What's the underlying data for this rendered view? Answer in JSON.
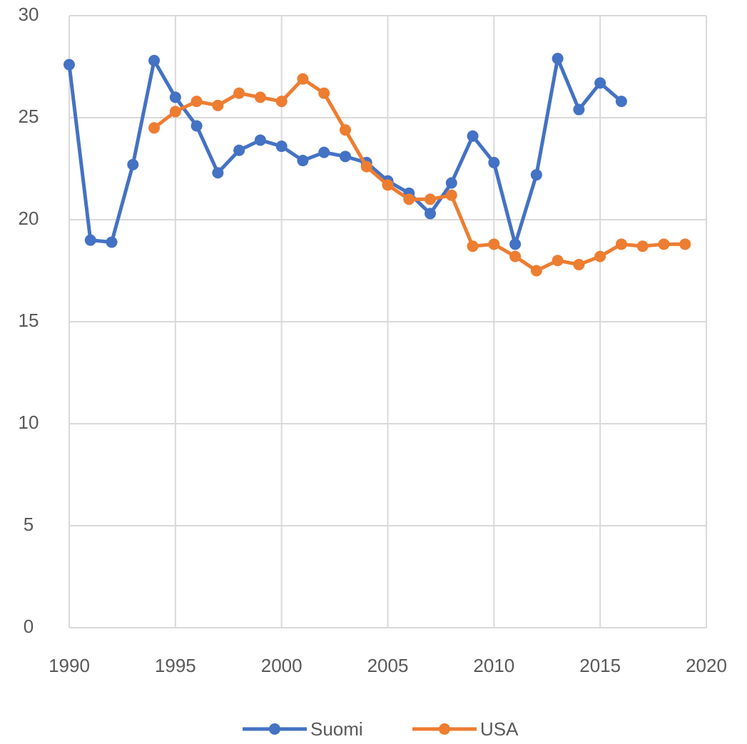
{
  "chart_data": {
    "type": "line",
    "x": [
      1990,
      1991,
      1992,
      1993,
      1994,
      1995,
      1996,
      1997,
      1998,
      1999,
      2000,
      2001,
      2002,
      2003,
      2004,
      2005,
      2006,
      2007,
      2008,
      2009,
      2010,
      2011,
      2012,
      2013,
      2014,
      2015,
      2016,
      2017,
      2018,
      2019
    ],
    "series": [
      {
        "name": "Suomi",
        "color": "#4472c4",
        "values": [
          27.6,
          19.0,
          18.9,
          22.7,
          27.8,
          26.0,
          24.6,
          22.3,
          23.4,
          23.9,
          23.6,
          22.9,
          23.3,
          23.1,
          22.8,
          21.9,
          21.3,
          20.3,
          21.8,
          24.1,
          22.8,
          18.8,
          22.2,
          27.9,
          25.4,
          26.7,
          25.8,
          null,
          null,
          null
        ]
      },
      {
        "name": "USA",
        "color": "#ed7d31",
        "values": [
          null,
          null,
          null,
          null,
          24.5,
          25.3,
          25.8,
          25.6,
          26.2,
          26.0,
          25.8,
          26.9,
          26.2,
          24.4,
          22.6,
          21.7,
          21.0,
          21.0,
          21.2,
          18.7,
          18.8,
          18.2,
          17.5,
          18.0,
          17.8,
          18.2,
          18.8,
          18.7,
          18.8,
          18.8
        ]
      }
    ],
    "xlim": [
      1990,
      2020
    ],
    "xticks": [
      1990,
      1995,
      2000,
      2005,
      2010,
      2015,
      2020
    ],
    "ylim": [
      0,
      30
    ],
    "yticks": [
      0,
      5,
      10,
      15,
      20,
      25,
      30
    ],
    "grid": true,
    "legend": "bottom"
  }
}
